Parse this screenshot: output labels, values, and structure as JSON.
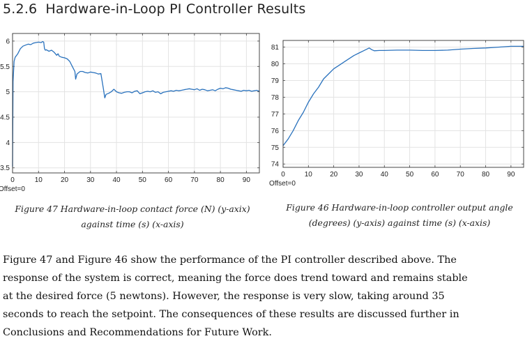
{
  "section": {
    "number": "5.2.6",
    "title": "Hardware-in-Loop PI Controller Results"
  },
  "chart_data": [
    {
      "type": "line",
      "title": "",
      "xlabel": "",
      "ylabel": "",
      "offset_label": "Offset=0",
      "xlim": [
        0,
        95
      ],
      "ylim": [
        3.4,
        6.15
      ],
      "xticks": [
        0,
        10,
        20,
        30,
        40,
        50,
        60,
        70,
        80,
        90
      ],
      "yticks": [
        3.5,
        4,
        4.5,
        5,
        5.5,
        6
      ],
      "grid": true,
      "color": "#2a72bd",
      "series": [
        {
          "x": [
            0,
            0.2,
            0.6,
            1,
            2,
            3,
            4,
            5,
            6,
            7,
            8,
            9,
            10,
            11,
            11.5,
            12,
            12.3,
            12.6,
            13,
            14,
            15,
            16,
            17,
            17.5,
            18,
            19,
            20,
            21,
            22,
            23,
            24,
            24.3,
            24.8,
            25.5,
            26,
            27,
            28,
            29,
            30,
            31,
            32,
            33,
            34,
            35,
            35.5,
            36,
            37,
            38,
            39,
            40,
            41,
            42,
            43,
            44,
            45,
            46,
            47,
            48,
            49,
            50,
            51,
            52,
            53,
            54,
            55,
            56,
            57,
            58,
            59,
            60,
            61,
            62,
            63,
            64,
            65,
            66,
            67,
            68,
            69,
            70,
            71,
            72,
            73,
            74,
            75,
            76,
            77,
            78,
            79,
            80,
            81,
            82,
            83,
            84,
            85,
            86,
            87,
            88,
            89,
            90,
            91,
            92,
            93,
            94,
            95
          ],
          "y": [
            3.52,
            5.2,
            5.6,
            5.68,
            5.75,
            5.85,
            5.9,
            5.92,
            5.94,
            5.93,
            5.96,
            5.97,
            5.98,
            5.97,
            5.99,
            5.98,
            5.85,
            5.82,
            5.83,
            5.8,
            5.82,
            5.78,
            5.72,
            5.75,
            5.7,
            5.68,
            5.67,
            5.65,
            5.6,
            5.5,
            5.4,
            5.25,
            5.35,
            5.38,
            5.4,
            5.4,
            5.38,
            5.37,
            5.39,
            5.38,
            5.37,
            5.35,
            5.36,
            5.05,
            4.88,
            4.95,
            4.97,
            5.0,
            5.05,
            5.0,
            4.98,
            4.97,
            4.99,
            5.0,
            5.0,
            4.98,
            5.01,
            5.02,
            4.96,
            4.98,
            5.0,
            5.01,
            5.0,
            5.02,
            4.99,
            5.0,
            4.96,
            4.99,
            5.0,
            5.01,
            5.02,
            5.01,
            5.03,
            5.02,
            5.03,
            5.04,
            5.05,
            5.06,
            5.05,
            5.04,
            5.06,
            5.03,
            5.05,
            5.04,
            5.02,
            5.03,
            5.04,
            5.02,
            5.05,
            5.07,
            5.06,
            5.08,
            5.07,
            5.05,
            5.04,
            5.03,
            5.02,
            5.01,
            5.03,
            5.02,
            5.03,
            5.01,
            5.02,
            5.03,
            5.01
          ]
        }
      ],
      "caption_lines": [
        "Figure 47 Hardware-in-loop contact force (N) (y-axix)",
        "against time (s) (x-axis)"
      ]
    },
    {
      "type": "line",
      "title": "",
      "xlabel": "",
      "ylabel": "",
      "offset_label": "Offset=0",
      "xlim": [
        0,
        95
      ],
      "ylim": [
        73.8,
        81.4
      ],
      "xticks": [
        0,
        10,
        20,
        30,
        40,
        50,
        60,
        70,
        80,
        90
      ],
      "yticks": [
        74,
        75,
        76,
        77,
        78,
        79,
        80,
        81
      ],
      "grid": true,
      "color": "#2a72bd",
      "series": [
        {
          "x": [
            0,
            2,
            4,
            6,
            8,
            10,
            12,
            14,
            16,
            18,
            20,
            22,
            24,
            26,
            28,
            30,
            32,
            34,
            35,
            36,
            38,
            40,
            45,
            50,
            55,
            60,
            65,
            70,
            75,
            80,
            85,
            90,
            95
          ],
          "y": [
            75.1,
            75.5,
            76.0,
            76.6,
            77.1,
            77.7,
            78.2,
            78.6,
            79.1,
            79.4,
            79.7,
            79.9,
            80.1,
            80.3,
            80.5,
            80.65,
            80.8,
            80.95,
            80.85,
            80.78,
            80.8,
            80.8,
            80.82,
            80.82,
            80.8,
            80.8,
            80.82,
            80.88,
            80.92,
            80.95,
            81.0,
            81.05,
            81.05
          ]
        }
      ],
      "caption_lines": [
        "Figure 46 Hardware-in-loop controller output angle",
        "(degrees) (y-axis) against time (s) (x-axis)"
      ]
    }
  ],
  "paragraph": [
    "Figure 47 and Figure 46 show the performance of the PI controller described above. The",
    "response of the system is correct, meaning the force does trend toward and remains stable",
    "at the desired force (5 newtons). However, the response is very slow, taking around 35",
    "seconds to reach the setpoint. The consequences of these results are discussed further in",
    "Conclusions and Recommendations for Future Work."
  ]
}
